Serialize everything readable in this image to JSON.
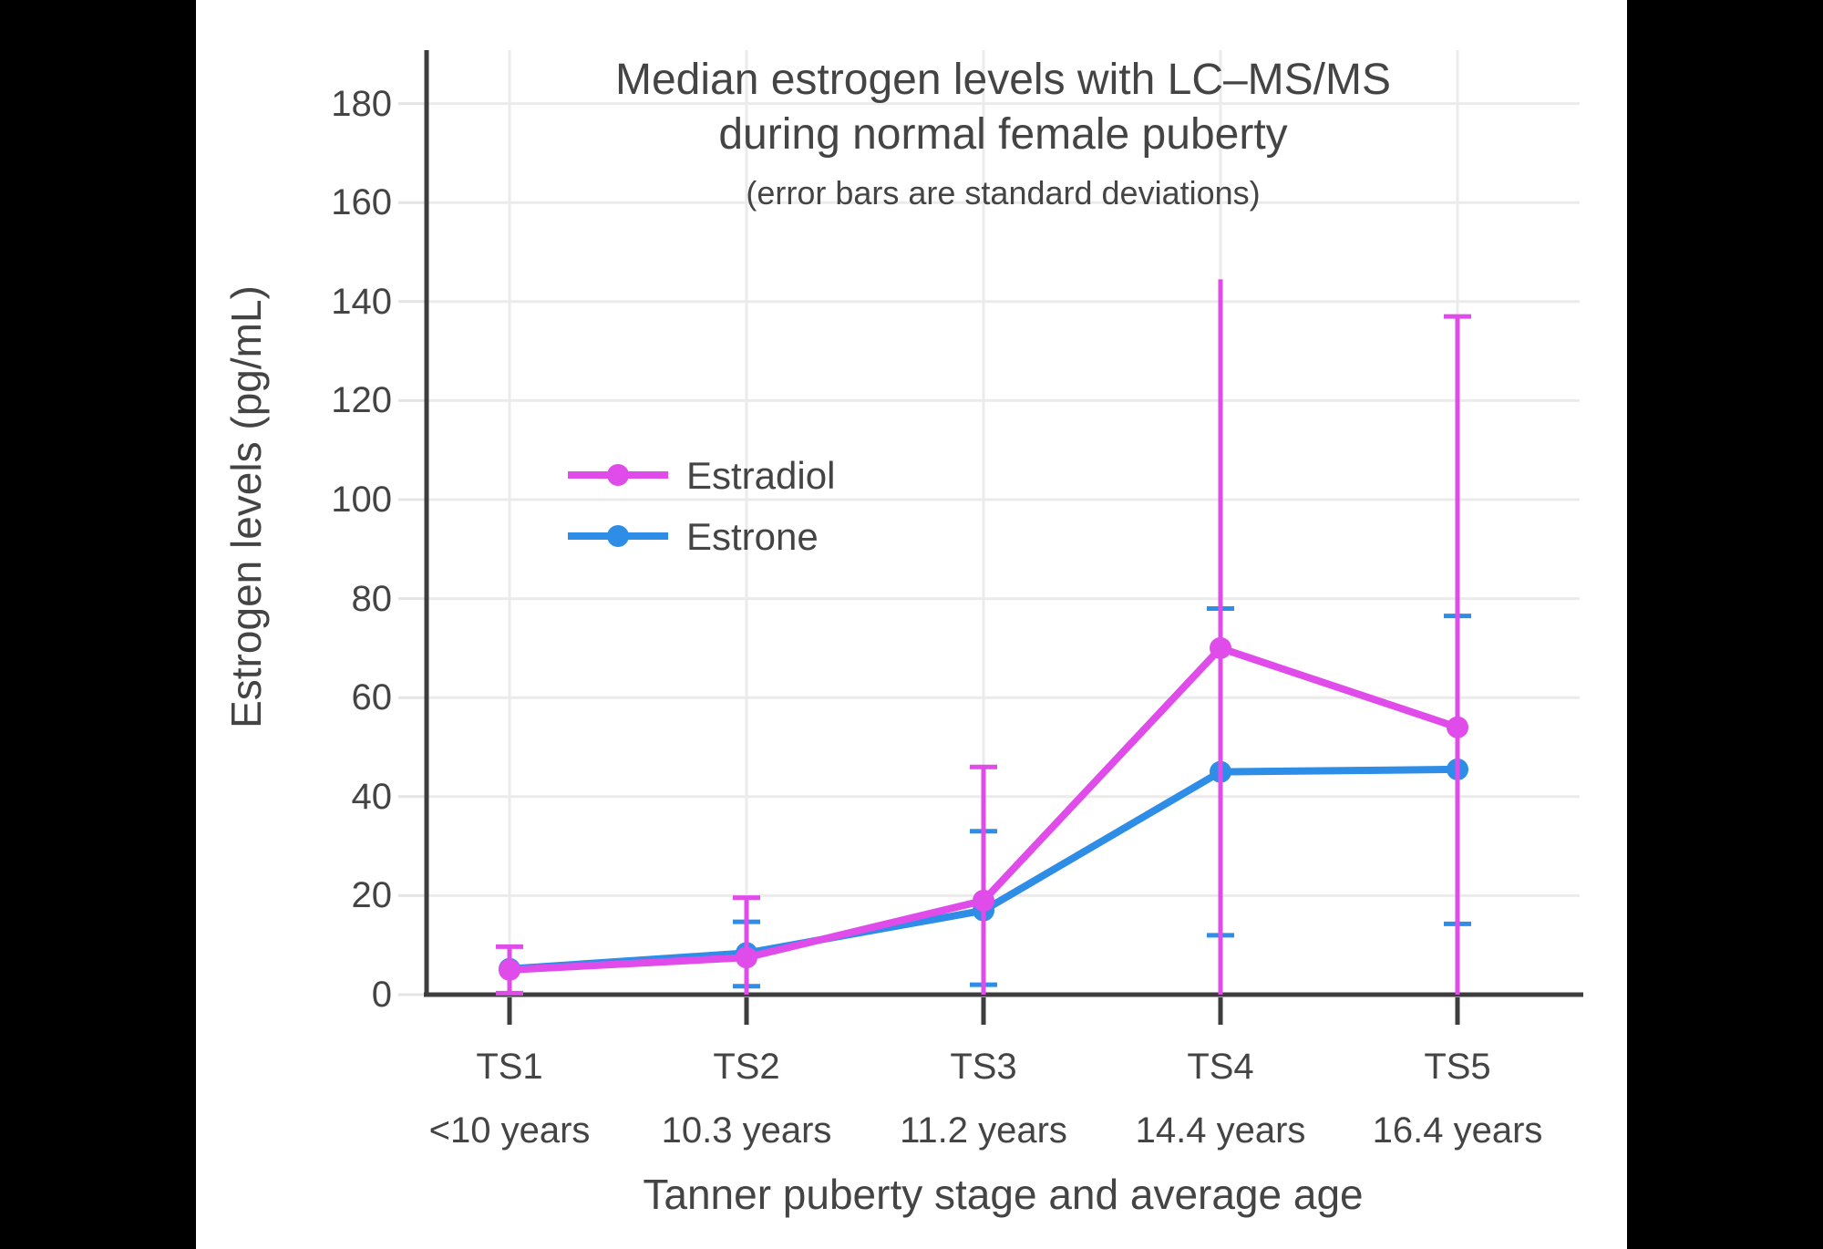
{
  "figure": {
    "title_line1": "Median estrogen levels with LC–MS/MS",
    "title_line2": "during normal female puberty",
    "subtitle": "(error bars are standard deviations)",
    "x_axis_title": "Tanner puberty stage and average age",
    "y_axis_title": "Estrogen levels (pg/mL)"
  },
  "chart_data": {
    "type": "line",
    "title": "Median estrogen levels with LC–MS/MS during normal female puberty",
    "subtitle": "(error bars are standard deviations)",
    "xlabel": "Tanner puberty stage and average age",
    "ylabel": "Estrogen levels (pg/mL)",
    "ylim": [
      0,
      190
    ],
    "y_ticks": [
      0,
      20,
      40,
      60,
      80,
      100,
      120,
      140,
      160,
      180
    ],
    "grid": true,
    "legend_position": "inside-upper-left",
    "categories": [
      {
        "stage": "TS1",
        "age": "<10 years"
      },
      {
        "stage": "TS2",
        "age": "10.3 years"
      },
      {
        "stage": "TS3",
        "age": "11.2 years"
      },
      {
        "stage": "TS4",
        "age": "14.4 years"
      },
      {
        "stage": "TS5",
        "age": "16.4 years"
      }
    ],
    "series": [
      {
        "name": "Estrone",
        "color": "#2E8DE6",
        "values": [
          5.2,
          8.4,
          17,
          45,
          45.5
        ],
        "err_top_abs": [
          null,
          14.7,
          33,
          78,
          76.5
        ],
        "err_bottom_abs": [
          null,
          1.7,
          2,
          12,
          14.3
        ],
        "cap_top": [
          false,
          true,
          true,
          true,
          true
        ],
        "cap_bottom": [
          false,
          true,
          true,
          true,
          true
        ]
      },
      {
        "name": "Estradiol",
        "color": "#E04CEA",
        "values": [
          5,
          7.5,
          19,
          70,
          54
        ],
        "err_top_abs": [
          9.7,
          19.6,
          46,
          144.5,
          137
        ],
        "err_bottom_abs": [
          0.3,
          0,
          0,
          0,
          0
        ],
        "cap_top": [
          true,
          true,
          true,
          false,
          true
        ],
        "cap_bottom": [
          true,
          false,
          false,
          false,
          false
        ]
      }
    ],
    "legend_order": [
      "Estradiol",
      "Estrone"
    ]
  },
  "colors": {
    "estradiol": "#E04CEA",
    "estrone": "#2E8DE6",
    "text": "#444444",
    "axis": "#3d3d3d",
    "grid": "#ebebeb",
    "y_tick_stub": "#e4e4e4",
    "background": "#ffffff",
    "letterbox": "#000000"
  }
}
